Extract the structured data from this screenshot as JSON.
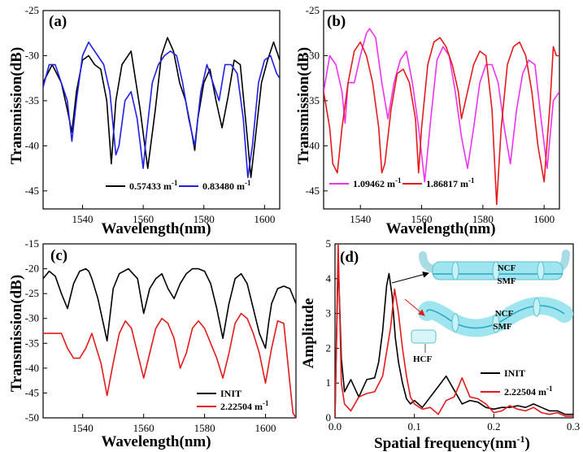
{
  "figure": {
    "colors": {
      "black": "#000000",
      "blue": "#1f1fe6",
      "red": "#e31b1b",
      "magenta": "#ee33ee",
      "tube": "#9fe5ef",
      "tube_edge": "#5fbfd0"
    }
  },
  "chart_data": [
    {
      "panel_label": "(a)",
      "type": "line",
      "xlabel": "Wavelength(nm)",
      "ylabel": "Transmission(dB)",
      "xlim": [
        1527,
        1605
      ],
      "ylim": [
        -47,
        -25
      ],
      "xticks": [
        "1540",
        "1560",
        "1580",
        "1600"
      ],
      "yticks": [
        "-25",
        "-30",
        "-35",
        "-40",
        "-45"
      ],
      "legend_position": "bottom-right",
      "series": [
        {
          "name": "0.57433 m",
          "name_sup": "-1",
          "color": "#000000",
          "x": [
            1527,
            1530,
            1533,
            1535,
            1536.5,
            1538,
            1540,
            1542,
            1544,
            1546,
            1548,
            1549.5,
            1551,
            1553,
            1556,
            1559,
            1561.5,
            1564,
            1566,
            1568,
            1570,
            1572,
            1574,
            1576,
            1577,
            1578,
            1580,
            1582,
            1584,
            1586,
            1588,
            1590,
            1592,
            1594,
            1595.5,
            1597,
            1599,
            1601,
            1603,
            1605
          ],
          "y": [
            -33,
            -31,
            -33,
            -36,
            -38.5,
            -34,
            -30.5,
            -30,
            -31,
            -31.5,
            -35,
            -42,
            -35,
            -31,
            -29.5,
            -36,
            -42.5,
            -36,
            -30,
            -28,
            -29.5,
            -33,
            -35,
            -38.5,
            -40.5,
            -37,
            -33,
            -31.5,
            -35,
            -38,
            -34.5,
            -30.5,
            -31,
            -38,
            -43.5,
            -39,
            -33,
            -30.5,
            -28.5,
            -30.5
          ]
        },
        {
          "name": "0.83480 m",
          "name_sup": "-1",
          "color": "#1f1fe6",
          "x": [
            1527,
            1529,
            1531,
            1533,
            1535,
            1536.5,
            1538,
            1540,
            1542,
            1543,
            1545,
            1547,
            1549,
            1551,
            1552,
            1554,
            1556,
            1558,
            1560,
            1561,
            1563,
            1565,
            1567,
            1569,
            1571,
            1573,
            1575,
            1577,
            1579,
            1581,
            1583,
            1585,
            1587,
            1589,
            1591,
            1593,
            1594.5,
            1596,
            1598,
            1600,
            1602,
            1604,
            1605
          ],
          "y": [
            -33.5,
            -31,
            -31,
            -33,
            -35,
            -39.5,
            -35,
            -30,
            -28.5,
            -29,
            -30,
            -31,
            -34,
            -41,
            -40,
            -35,
            -34,
            -37,
            -42.5,
            -39,
            -33,
            -31,
            -30,
            -29.5,
            -30,
            -33,
            -37,
            -40,
            -34,
            -31,
            -33,
            -35,
            -31,
            -31,
            -32,
            -37,
            -43.5,
            -40,
            -33,
            -30.5,
            -30,
            -32,
            -32.5
          ]
        }
      ]
    },
    {
      "panel_label": "(b)",
      "type": "line",
      "xlabel": "Wavelength(nm)",
      "ylabel": "Transmission(dB)",
      "xlim": [
        1528,
        1605
      ],
      "ylim": [
        -47,
        -25
      ],
      "xticks": [
        "1540",
        "1560",
        "1580",
        "1600"
      ],
      "yticks": [
        "-25",
        "-30",
        "-35",
        "-40",
        "-45"
      ],
      "legend_position": "bottom-left",
      "series": [
        {
          "name": "1.09462 m",
          "name_sup": "-1",
          "color": "#ee33ee",
          "x": [
            1528,
            1530,
            1532,
            1534,
            1535,
            1536,
            1538,
            1540,
            1542,
            1543,
            1545,
            1547,
            1549,
            1551,
            1553,
            1555,
            1557,
            1559,
            1561,
            1563,
            1565,
            1567,
            1569,
            1571,
            1573,
            1575,
            1577,
            1579,
            1581,
            1583,
            1585,
            1587,
            1589,
            1591,
            1593,
            1595,
            1597,
            1599,
            1601,
            1603,
            1605
          ],
          "y": [
            -34,
            -30,
            -31,
            -34,
            -37.5,
            -33,
            -33,
            -30,
            -27.5,
            -27,
            -28,
            -33,
            -37,
            -33,
            -30.5,
            -29.5,
            -33,
            -38,
            -44,
            -37,
            -30.5,
            -29,
            -30,
            -34,
            -39,
            -42.5,
            -38,
            -33,
            -31,
            -31,
            -33,
            -38,
            -42,
            -36,
            -32,
            -30.5,
            -31,
            -37,
            -42.5,
            -35,
            -34
          ]
        },
        {
          "name": "1.86817 m",
          "name_sup": "-1",
          "color": "#e31b1b",
          "x": [
            1528,
            1530,
            1531,
            1532.5,
            1534,
            1536,
            1538,
            1540,
            1542,
            1544,
            1546,
            1547,
            1548,
            1550,
            1552,
            1554,
            1556,
            1558,
            1559,
            1560,
            1562,
            1564,
            1566,
            1568,
            1570,
            1572,
            1573,
            1575,
            1577,
            1579,
            1581,
            1583,
            1584.5,
            1586,
            1588,
            1590,
            1592,
            1594,
            1596,
            1598,
            1600,
            1602,
            1603,
            1604,
            1605
          ],
          "y": [
            -34,
            -38,
            -42,
            -43,
            -38,
            -33,
            -29.5,
            -28.5,
            -30,
            -33,
            -38,
            -43,
            -42,
            -36,
            -32,
            -31.5,
            -33,
            -37,
            -43,
            -38,
            -31,
            -28.5,
            -28,
            -29,
            -31,
            -34,
            -37,
            -34,
            -31,
            -29.5,
            -30,
            -36,
            -46.5,
            -38,
            -31,
            -29,
            -28.5,
            -30,
            -34,
            -40,
            -44,
            -35,
            -29,
            -30,
            -30
          ]
        }
      ]
    },
    {
      "panel_label": "(c)",
      "type": "line",
      "xlabel": "Wavelength(nm)",
      "ylabel": "Transmission(dB)",
      "xlim": [
        1527,
        1610
      ],
      "ylim": [
        -50,
        -15
      ],
      "xticks": [
        "1540",
        "1560",
        "1580",
        "1600"
      ],
      "yticks": [
        "-15",
        "-20",
        "-25",
        "-30",
        "-35",
        "-40",
        "-45",
        "-50"
      ],
      "legend_position": "bottom-right",
      "series": [
        {
          "name": "INIT",
          "color": "#000000",
          "x": [
            1527,
            1529,
            1531,
            1533,
            1535,
            1537,
            1539,
            1541,
            1542,
            1543,
            1545,
            1548,
            1550,
            1552,
            1555,
            1558,
            1560,
            1562,
            1564,
            1566,
            1568,
            1570,
            1572,
            1574,
            1576,
            1578,
            1580,
            1582,
            1584,
            1586,
            1588,
            1590,
            1592,
            1594,
            1596,
            1598,
            1600,
            1601,
            1602,
            1604,
            1606,
            1608,
            1610
          ],
          "y": [
            -22,
            -20.5,
            -21.5,
            -25,
            -28,
            -23,
            -20.5,
            -20,
            -20.5,
            -22,
            -26,
            -34.5,
            -24,
            -21,
            -20,
            -22,
            -29,
            -24,
            -22,
            -21,
            -24,
            -26,
            -23,
            -21,
            -20,
            -20,
            -20.5,
            -23,
            -28,
            -34,
            -27,
            -22,
            -21,
            -23,
            -28,
            -33,
            -36,
            -31,
            -27,
            -24,
            -23.5,
            -24,
            -27
          ]
        },
        {
          "name": "2.22504 m",
          "name_sup": "-1",
          "color": "#e31b1b",
          "x": [
            1527,
            1529,
            1531,
            1533,
            1535,
            1537,
            1539,
            1541,
            1543,
            1545,
            1546,
            1548,
            1550,
            1552,
            1554,
            1556,
            1558,
            1560,
            1562,
            1564,
            1566,
            1568,
            1570,
            1572,
            1574,
            1576,
            1578,
            1580,
            1582,
            1584,
            1586,
            1588,
            1590,
            1592,
            1594,
            1596,
            1598,
            1600,
            1602,
            1604,
            1606,
            1607,
            1608,
            1609,
            1610
          ],
          "y": [
            -33,
            -33,
            -33,
            -33,
            -36,
            -38,
            -38,
            -36,
            -33,
            -37,
            -39,
            -45.5,
            -39,
            -33,
            -30.5,
            -32,
            -37,
            -42,
            -37,
            -32,
            -30,
            -31,
            -34,
            -40,
            -37,
            -32,
            -30.5,
            -32,
            -35,
            -38,
            -42,
            -37,
            -31,
            -29,
            -30,
            -33,
            -37,
            -43,
            -36,
            -30.5,
            -31,
            -37,
            -43,
            -49,
            -50
          ]
        }
      ]
    },
    {
      "panel_label": "(d)",
      "type": "line",
      "xlabel": "Spatial frequency(nm",
      "xlabel_sup": "-1",
      "xlabel_tail": ")",
      "ylabel": "Amplitude",
      "xlim": [
        0,
        0.3
      ],
      "ylim": [
        0,
        5
      ],
      "xticks": [
        "0.0",
        "0.1",
        "0.2",
        "0.3"
      ],
      "yticks": [
        "0",
        "1",
        "2",
        "3",
        "4",
        "5"
      ],
      "legend_position": "bottom-right",
      "series": [
        {
          "name": "INIT",
          "color": "#000000",
          "x": [
            0,
            0.004,
            0.008,
            0.012,
            0.02,
            0.03,
            0.04,
            0.05,
            0.055,
            0.06,
            0.065,
            0.068,
            0.072,
            0.076,
            0.08,
            0.085,
            0.09,
            0.095,
            0.1,
            0.11,
            0.12,
            0.13,
            0.14,
            0.15,
            0.16,
            0.17,
            0.18,
            0.19,
            0.2,
            0.21,
            0.22,
            0.23,
            0.24,
            0.25,
            0.26,
            0.27,
            0.28,
            0.29,
            0.3
          ],
          "y": [
            0,
            4.6,
            1.7,
            0.75,
            1.1,
            0.6,
            1.1,
            1.15,
            1.6,
            2.5,
            3.8,
            4.15,
            3.5,
            2.3,
            1.6,
            1.0,
            0.55,
            0.4,
            0.5,
            0.3,
            0.6,
            0.9,
            1.2,
            0.8,
            0.4,
            0.5,
            0.45,
            0.3,
            0.25,
            0.3,
            0.3,
            0.35,
            0.3,
            0.4,
            0.3,
            0.2,
            0.2,
            0.1,
            0.1
          ]
        },
        {
          "name": "2.22504 m",
          "name_sup": "-1",
          "color": "#e31b1b",
          "x": [
            0,
            0.004,
            0.008,
            0.012,
            0.02,
            0.03,
            0.04,
            0.05,
            0.06,
            0.07,
            0.075,
            0.08,
            0.085,
            0.09,
            0.095,
            0.1,
            0.11,
            0.12,
            0.13,
            0.14,
            0.15,
            0.16,
            0.17,
            0.18,
            0.19,
            0.2,
            0.21,
            0.22,
            0.23,
            0.24,
            0.25,
            0.26,
            0.27,
            0.28,
            0.29,
            0.3
          ],
          "y": [
            0,
            5,
            1.0,
            0.4,
            0.2,
            0.6,
            0.7,
            0.75,
            1.2,
            2.6,
            3.7,
            3.0,
            2.0,
            1.2,
            0.6,
            0.4,
            0.25,
            0.3,
            0.1,
            0.5,
            0.6,
            1.15,
            0.6,
            0.55,
            0.4,
            0.15,
            0.2,
            0.35,
            0.25,
            0.2,
            0.3,
            0.15,
            0.1,
            0.15,
            0.05,
            0.05
          ]
        }
      ],
      "inset": {
        "label_ncf": "NCF",
        "label_smf": "SMF",
        "label_hcf": "HCF"
      }
    }
  ]
}
